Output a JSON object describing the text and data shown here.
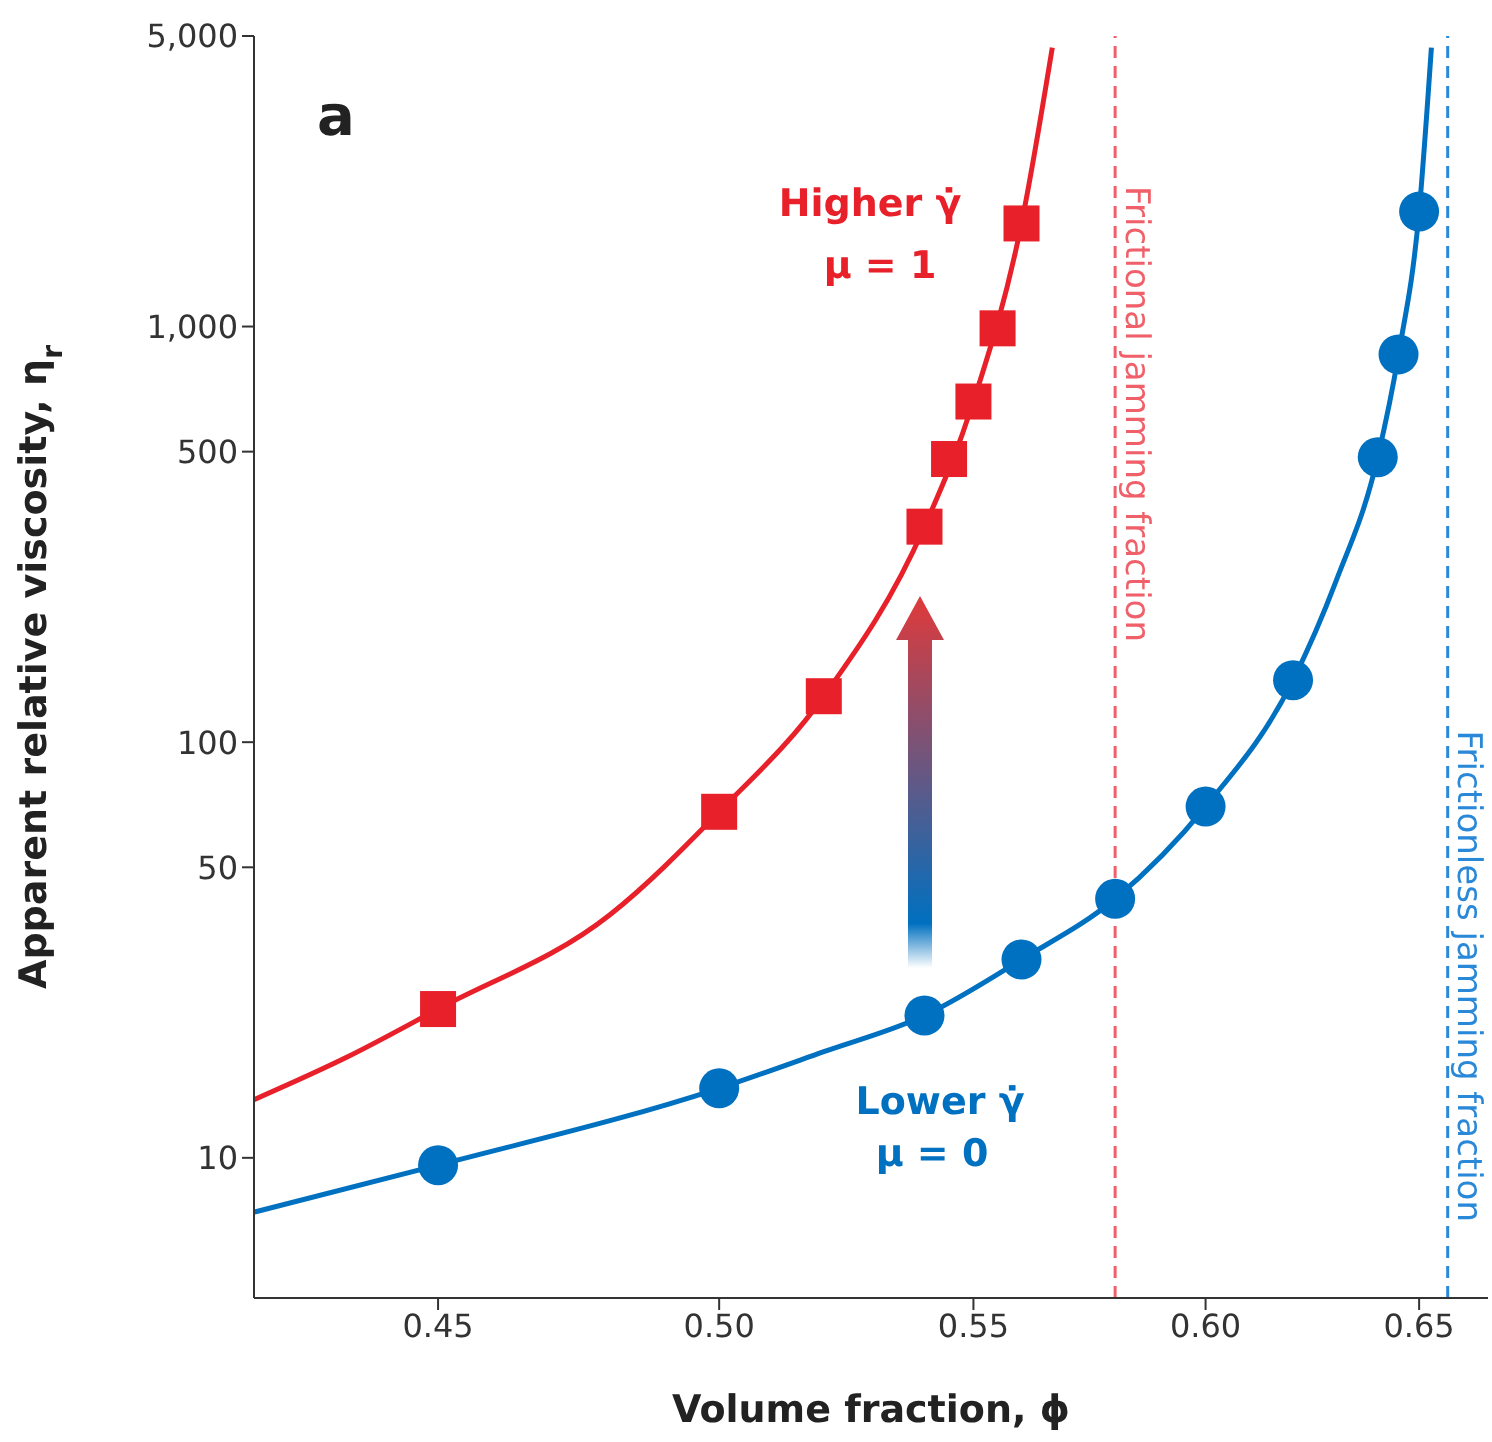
{
  "chart_data": {
    "type": "line",
    "xlabel": "Volume fraction, ϕ",
    "ylabel": "Apparent relative viscosity, η$_{r}$",
    "log": "xy",
    "xlim": [
      0.42,
      0.667
    ],
    "ylim": [
      4.6,
      5000
    ],
    "xticks": [
      0.45,
      {
        "value": 0.5,
        "label": "0.50"
      },
      0.55,
      {
        "value": 0.6,
        "label": "0.60"
      },
      0.65
    ],
    "yticks": [
      10,
      50,
      100,
      500,
      {
        "value": 1000,
        "label": "1,000"
      },
      {
        "value": 5000,
        "label": "5,000"
      }
    ],
    "series": [
      {
        "color": "#e8202a",
        "marker": "none",
        "line_style": "solid",
        "x": [
          0.42,
          0.435,
          0.45,
          0.48,
          0.5,
          0.52,
          0.54,
          0.55,
          0.56,
          0.5665
        ],
        "values": [
          13.8,
          17.5,
          22.8,
          38.5,
          68,
          129,
          330,
          660,
          1770,
          4690
        ]
      },
      {
        "type": "scatter",
        "color": "#e8202a",
        "marker": "square",
        "x": [
          0.45,
          0.5,
          0.52,
          0.54,
          0.545,
          0.55,
          0.555,
          0.56
        ],
        "values": [
          22.8,
          68,
          129,
          330,
          480,
          660,
          990,
          1770
        ]
      },
      {
        "color": "#0070c0",
        "marker": "none",
        "line_style": "solid",
        "x": [
          0.42,
          0.45,
          0.5,
          0.52,
          0.54,
          0.56,
          0.58,
          0.6,
          0.62,
          0.63,
          0.64,
          0.645,
          0.65,
          0.653
        ],
        "values": [
          7.4,
          9.6,
          14.7,
          18,
          22,
          30,
          42,
          70,
          141,
          243,
          485,
          857,
          1890,
          4690
        ]
      },
      {
        "type": "scatter",
        "color": "#0070c0",
        "marker": "circle",
        "x": [
          0.45,
          0.5,
          0.54,
          0.56,
          0.58,
          0.6,
          0.62,
          0.64,
          0.645,
          0.65
        ],
        "values": [
          9.6,
          14.7,
          22,
          30,
          42,
          70,
          141,
          485,
          857,
          1890
        ]
      }
    ],
    "ref_lines": [
      {
        "axis": "x",
        "value": 0.58,
        "label": "Frictional jamming fraction",
        "color": "#f0606a",
        "line_style": "dashed"
      },
      {
        "axis": "x",
        "value": 0.657,
        "label": "Frictionless jamming fraction",
        "color": "#2a88d8",
        "line_style": "dashed"
      }
    ],
    "annotations": [
      "a",
      "Higher γ̇",
      "μ = 1",
      "Lower γ̇",
      "μ = 0"
    ]
  }
}
